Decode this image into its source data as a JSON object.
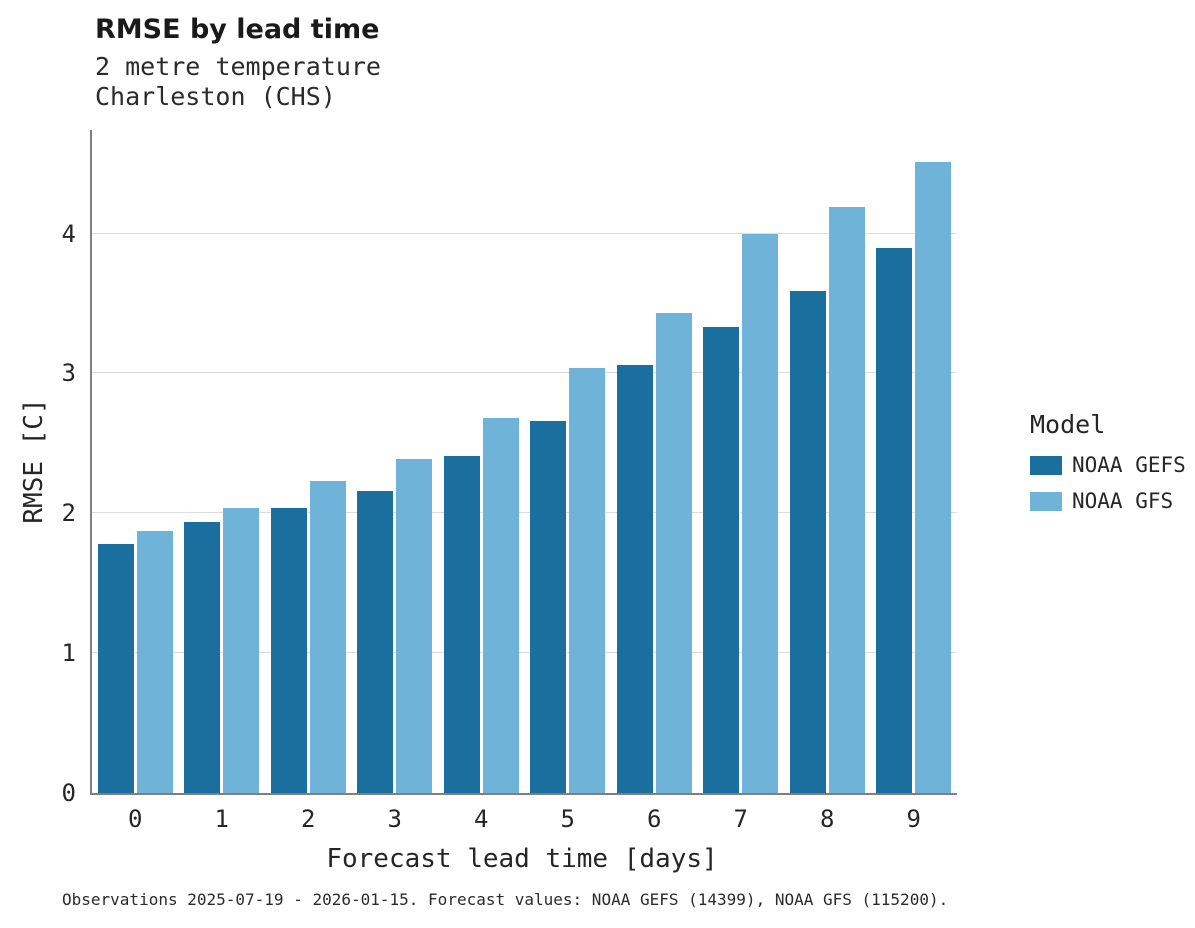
{
  "chart_data": {
    "type": "bar",
    "title": "RMSE by lead time",
    "subtitle_line1": "2 metre temperature",
    "subtitle_line2": "Charleston (CHS)",
    "xlabel": "Forecast lead time [days]",
    "ylabel": "RMSE [C]",
    "categories": [
      "0",
      "1",
      "2",
      "3",
      "4",
      "5",
      "6",
      "7",
      "8",
      "9"
    ],
    "series": [
      {
        "name": "NOAA GEFS",
        "color": "#1a6f9e",
        "values": [
          1.78,
          1.94,
          2.04,
          2.16,
          2.41,
          2.66,
          3.06,
          3.33,
          3.59,
          3.9
        ]
      },
      {
        "name": "NOAA GFS",
        "color": "#6fb3d9",
        "values": [
          1.87,
          2.04,
          2.23,
          2.39,
          2.68,
          3.04,
          3.43,
          4.0,
          4.19,
          4.51
        ]
      }
    ],
    "ylim": [
      0,
      4.74
    ],
    "yticks": [
      0,
      1,
      2,
      3,
      4
    ],
    "grid": "horizontal",
    "legend_title": "Model",
    "legend_position": "right",
    "caption": "Observations 2025-07-19 - 2026-01-15. Forecast values: NOAA GEFS (14399), NOAA GFS (115200)."
  }
}
